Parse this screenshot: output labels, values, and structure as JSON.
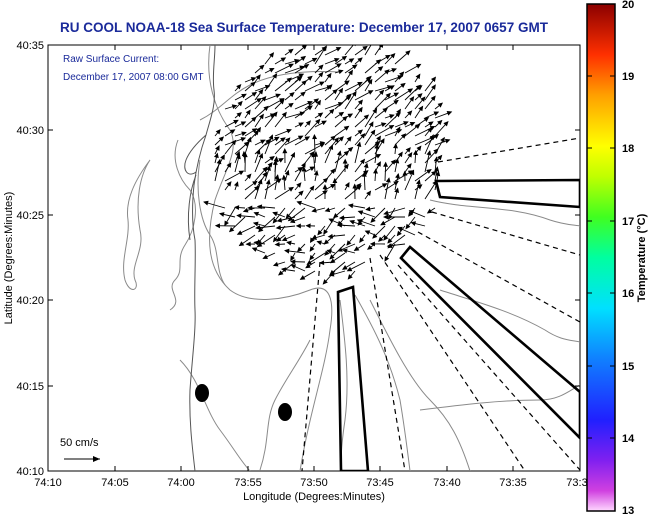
{
  "title": "RU COOL  NOAA-18  Sea Surface Temperature:  December 17, 2007 0657 GMT",
  "annotation": {
    "line1": "Raw Surface Current:",
    "line2": "December 17, 2007 08:00 GMT"
  },
  "scale_label": "50 cm/s",
  "axes": {
    "xlabel": "Longitude (Degrees:Minutes)",
    "ylabel": "Latitude (Degrees:Minutes)",
    "x_ticks": [
      "74:10",
      "74:05",
      "74:00",
      "73:55",
      "73:50",
      "73:45",
      "73:40",
      "73:35",
      "73:3"
    ],
    "y_ticks": [
      "40:35",
      "40:30",
      "40:25",
      "40:20",
      "40:15",
      "40:10"
    ]
  },
  "colorbar": {
    "label": "Temperature (°C)",
    "min": 13,
    "max": 20,
    "ticks": [
      "20",
      "19",
      "18",
      "17",
      "16",
      "15",
      "14",
      "13"
    ]
  }
}
